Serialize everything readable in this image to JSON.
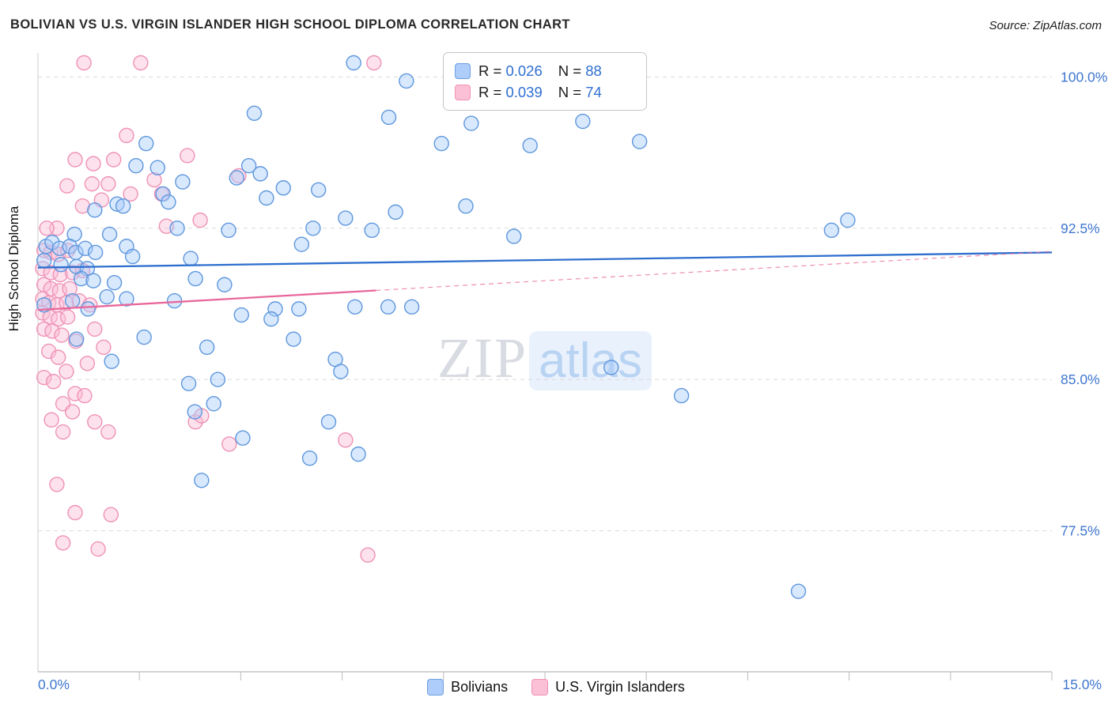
{
  "header": {
    "title": "BOLIVIAN VS U.S. VIRGIN ISLANDER HIGH SCHOOL DIPLOMA CORRELATION CHART",
    "source": "Source: ZipAtlas.com"
  },
  "watermark": {
    "part1": "ZIP",
    "part2": "atlas"
  },
  "legend_box": {
    "items": [
      {
        "series": "Bolivians",
        "r_label": "R = ",
        "r_value": "0.026",
        "n_label": "N = ",
        "n_value": "88"
      },
      {
        "series": "U.S. Virgin Islanders",
        "r_label": "R = ",
        "r_value": "0.039",
        "n_label": "N = ",
        "n_value": "74"
      }
    ]
  },
  "bottom_legend": {
    "items": [
      {
        "label": "Bolivians"
      },
      {
        "label": "U.S. Virgin Islanders"
      }
    ]
  },
  "chart_data": {
    "type": "scatter",
    "title": "BOLIVIAN VS U.S. VIRGIN ISLANDER HIGH SCHOOL DIPLOMA CORRELATION CHART",
    "ylabel": "High School Diploma",
    "x_axis": {
      "min": 0,
      "max": 15,
      "tick_step": 1.5,
      "min_label": "0.0%",
      "max_label": "15.0%"
    },
    "y_axis": {
      "top_value": 101.19,
      "bottom_value": 70.51,
      "gridlines": [
        {
          "value": 100.0,
          "label": "100.0%"
        },
        {
          "value": 92.5,
          "label": "92.5%"
        },
        {
          "value": 85.0,
          "label": "85.0%"
        },
        {
          "value": 77.5,
          "label": "77.5%"
        }
      ]
    },
    "series": [
      {
        "name": "Bolivians",
        "R": 0.026,
        "N": 88,
        "fill": "#a8ccfa",
        "stroke": "#5e97dd",
        "points": [
          [
            4.67,
            100.7
          ],
          [
            5.45,
            99.8
          ],
          [
            3.2,
            98.2
          ],
          [
            5.19,
            98.0
          ],
          [
            6.41,
            97.7
          ],
          [
            8.06,
            97.8
          ],
          [
            5.97,
            96.7
          ],
          [
            7.28,
            96.6
          ],
          [
            8.9,
            96.8
          ],
          [
            1.6,
            96.7
          ],
          [
            1.45,
            95.6
          ],
          [
            1.77,
            95.5
          ],
          [
            3.12,
            95.6
          ],
          [
            3.29,
            95.2
          ],
          [
            2.94,
            95.0
          ],
          [
            2.14,
            94.8
          ],
          [
            3.63,
            94.5
          ],
          [
            4.15,
            94.4
          ],
          [
            3.38,
            94.0
          ],
          [
            1.85,
            94.2
          ],
          [
            1.93,
            93.8
          ],
          [
            0.84,
            93.4
          ],
          [
            1.17,
            93.7
          ],
          [
            1.26,
            93.6
          ],
          [
            4.55,
            93.0
          ],
          [
            6.33,
            93.6
          ],
          [
            11.74,
            92.4
          ],
          [
            11.98,
            92.9
          ],
          [
            0.54,
            92.2
          ],
          [
            1.06,
            92.2
          ],
          [
            2.06,
            92.5
          ],
          [
            2.82,
            92.4
          ],
          [
            4.94,
            92.4
          ],
          [
            5.29,
            93.3
          ],
          [
            7.04,
            92.1
          ],
          [
            4.07,
            92.5
          ],
          [
            3.9,
            91.7
          ],
          [
            0.12,
            91.6
          ],
          [
            0.21,
            91.8
          ],
          [
            0.32,
            91.5
          ],
          [
            0.47,
            91.6
          ],
          [
            0.56,
            91.3
          ],
          [
            0.7,
            91.5
          ],
          [
            0.85,
            91.3
          ],
          [
            0.09,
            90.9
          ],
          [
            0.34,
            90.7
          ],
          [
            0.57,
            90.6
          ],
          [
            0.73,
            90.5
          ],
          [
            1.31,
            91.6
          ],
          [
            1.4,
            91.1
          ],
          [
            2.26,
            91.0
          ],
          [
            0.64,
            90.0
          ],
          [
            0.82,
            89.9
          ],
          [
            1.13,
            89.8
          ],
          [
            2.33,
            90.0
          ],
          [
            2.76,
            89.7
          ],
          [
            2.02,
            88.9
          ],
          [
            0.74,
            88.5
          ],
          [
            0.09,
            88.7
          ],
          [
            3.51,
            88.5
          ],
          [
            3.86,
            88.5
          ],
          [
            4.69,
            88.6
          ],
          [
            5.18,
            88.6
          ],
          [
            5.53,
            88.6
          ],
          [
            3.01,
            88.2
          ],
          [
            3.45,
            88.0
          ],
          [
            0.51,
            88.9
          ],
          [
            1.02,
            89.1
          ],
          [
            1.31,
            89.0
          ],
          [
            0.57,
            87.0
          ],
          [
            1.57,
            87.1
          ],
          [
            2.5,
            86.6
          ],
          [
            3.78,
            87.0
          ],
          [
            4.4,
            86.0
          ],
          [
            4.48,
            85.4
          ],
          [
            1.09,
            85.9
          ],
          [
            2.23,
            84.8
          ],
          [
            2.66,
            85.0
          ],
          [
            2.6,
            83.8
          ],
          [
            2.32,
            83.4
          ],
          [
            4.3,
            82.9
          ],
          [
            3.03,
            82.1
          ],
          [
            4.02,
            81.1
          ],
          [
            4.74,
            81.3
          ],
          [
            2.42,
            80.0
          ],
          [
            8.48,
            85.6
          ],
          [
            9.52,
            84.2
          ],
          [
            11.25,
            74.5
          ]
        ]
      },
      {
        "name": "U.S. Virgin Islanders",
        "R": 0.039,
        "N": 74,
        "fill": "#fbbcd4",
        "stroke": "#ef92b6",
        "points": [
          [
            0.68,
            100.7
          ],
          [
            1.52,
            100.7
          ],
          [
            4.97,
            100.7
          ],
          [
            1.31,
            97.1
          ],
          [
            2.21,
            96.1
          ],
          [
            0.55,
            95.9
          ],
          [
            0.82,
            95.7
          ],
          [
            1.12,
            95.9
          ],
          [
            2.97,
            95.1
          ],
          [
            1.04,
            94.7
          ],
          [
            0.43,
            94.6
          ],
          [
            0.8,
            94.7
          ],
          [
            1.37,
            94.2
          ],
          [
            1.83,
            94.2
          ],
          [
            0.66,
            93.6
          ],
          [
            0.94,
            93.9
          ],
          [
            2.4,
            92.9
          ],
          [
            0.28,
            92.5
          ],
          [
            0.13,
            92.5
          ],
          [
            1.9,
            92.6
          ],
          [
            0.09,
            91.4
          ],
          [
            0.19,
            91.3
          ],
          [
            0.3,
            91.2
          ],
          [
            0.44,
            91.4
          ],
          [
            0.07,
            90.5
          ],
          [
            0.19,
            90.3
          ],
          [
            0.33,
            90.2
          ],
          [
            0.51,
            90.3
          ],
          [
            0.66,
            90.4
          ],
          [
            0.09,
            89.7
          ],
          [
            0.19,
            89.5
          ],
          [
            0.32,
            89.4
          ],
          [
            0.47,
            89.5
          ],
          [
            0.07,
            89.0
          ],
          [
            0.16,
            88.8
          ],
          [
            0.28,
            88.7
          ],
          [
            0.42,
            88.8
          ],
          [
            0.61,
            88.9
          ],
          [
            0.77,
            88.7
          ],
          [
            0.07,
            88.3
          ],
          [
            0.18,
            88.1
          ],
          [
            0.3,
            88.0
          ],
          [
            0.44,
            88.1
          ],
          [
            0.09,
            87.5
          ],
          [
            0.21,
            87.4
          ],
          [
            0.35,
            87.2
          ],
          [
            0.84,
            87.5
          ],
          [
            0.97,
            86.6
          ],
          [
            0.56,
            86.9
          ],
          [
            0.16,
            86.4
          ],
          [
            0.3,
            86.1
          ],
          [
            0.73,
            85.8
          ],
          [
            0.42,
            85.4
          ],
          [
            0.09,
            85.1
          ],
          [
            0.23,
            84.9
          ],
          [
            0.55,
            84.3
          ],
          [
            0.69,
            84.2
          ],
          [
            0.37,
            83.8
          ],
          [
            0.51,
            83.4
          ],
          [
            0.84,
            82.9
          ],
          [
            0.2,
            83.0
          ],
          [
            0.37,
            82.4
          ],
          [
            1.04,
            82.4
          ],
          [
            2.33,
            82.9
          ],
          [
            2.83,
            81.8
          ],
          [
            4.55,
            82.0
          ],
          [
            0.28,
            79.8
          ],
          [
            0.55,
            78.4
          ],
          [
            0.37,
            76.9
          ],
          [
            0.89,
            76.6
          ],
          [
            4.88,
            76.3
          ],
          [
            1.08,
            78.3
          ],
          [
            2.42,
            83.2
          ],
          [
            1.72,
            94.9
          ]
        ]
      }
    ],
    "trend_lines": [
      {
        "series": "Bolivians",
        "color": "#2e6fce",
        "x_start": 0,
        "y_start": 90.55,
        "x_end": 15,
        "y_end": 91.3,
        "dash_from": null
      },
      {
        "series": "U.S. Virgin Islanders",
        "color": "#e8679a",
        "x_start": 0,
        "y_start": 88.45,
        "x_end": 15,
        "y_end": 91.35,
        "dash_from": 5.0
      }
    ],
    "grid": true,
    "legend_position": "top-center",
    "accent_label_color": "#3f76cf"
  }
}
